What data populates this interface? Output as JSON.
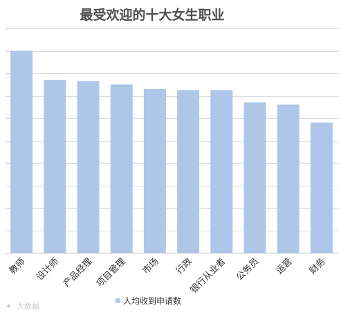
{
  "chart_data": {
    "type": "bar",
    "title": "最受欢迎的十大女生职业",
    "categories": [
      "教师",
      "设计师",
      "产品经理",
      "项目管理",
      "市场",
      "行政",
      "银行从业者",
      "公务员",
      "运营",
      "财务"
    ],
    "series": [
      {
        "name": "人均收到申请数",
        "values": [
          9.0,
          7.7,
          7.65,
          7.5,
          7.3,
          7.25,
          7.25,
          6.7,
          6.6,
          5.8
        ],
        "color": "#aec6e8"
      }
    ],
    "ylim": [
      0,
      10
    ],
    "gridlines": [
      1,
      2,
      3,
      4,
      5,
      6,
      7,
      8,
      9,
      10
    ],
    "grid": true,
    "y_tick_labels_shown": false,
    "legend_position": "bottom",
    "gridline_color": "#d9d9d9",
    "axis_color": "#bfbfbf"
  },
  "watermark": {
    "text": "大数据"
  }
}
